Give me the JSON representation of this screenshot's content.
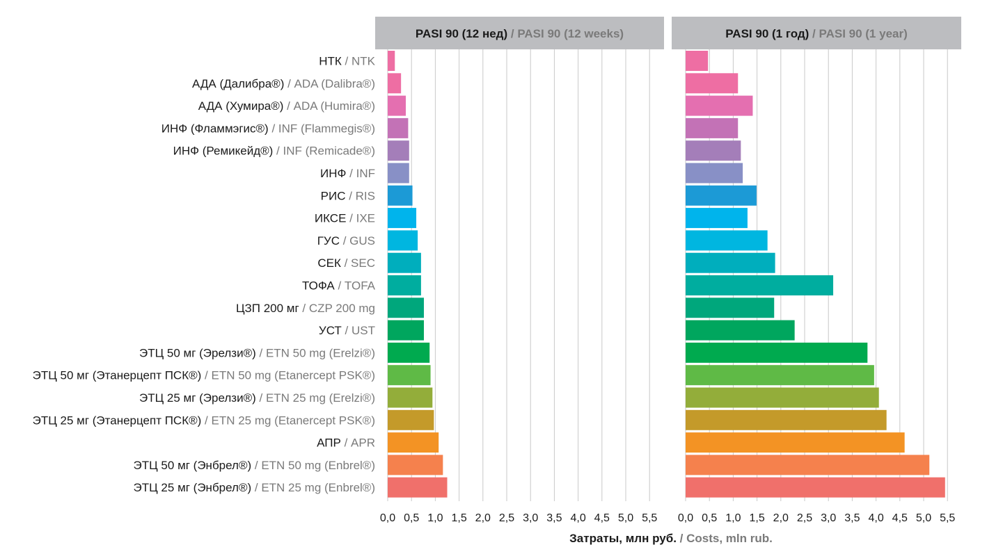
{
  "chart_data": {
    "type": "bar",
    "orientation": "horizontal",
    "categories": [
      {
        "ru": "НТК",
        "en": "NTK"
      },
      {
        "ru": "АДА (Далибра®)",
        "en": "ADA (Dalibra®)"
      },
      {
        "ru": "АДА (Хумира®)",
        "en": "ADA (Humira®)"
      },
      {
        "ru": "ИНФ (Фламмэгис®)",
        "en": "INF (Flammegis®)"
      },
      {
        "ru": "ИНФ (Ремикейд®)",
        "en": "INF (Remicade®)"
      },
      {
        "ru": "ИНФ",
        "en": "INF"
      },
      {
        "ru": "РИС",
        "en": "RIS"
      },
      {
        "ru": "ИКСЕ",
        "en": "IXE"
      },
      {
        "ru": "ГУС",
        "en": "GUS"
      },
      {
        "ru": "СЕК",
        "en": "SEC"
      },
      {
        "ru": "ТОФА",
        "en": "TOFA"
      },
      {
        "ru": "ЦЗП 200 мг",
        "en": "CZP 200 mg"
      },
      {
        "ru": "УСТ",
        "en": "UST"
      },
      {
        "ru": "ЭТЦ 50 мг (Эрелзи®)",
        "en": "ETN 50 mg (Erelzi®)"
      },
      {
        "ru": "ЭТЦ 50 мг (Этанерцепт ПСК®)",
        "en": "ETN 50 mg (Etanercept PSK®)"
      },
      {
        "ru": "ЭТЦ 25 мг (Эрелзи®)",
        "en": "ETN 25 mg (Erelzi®)"
      },
      {
        "ru": "ЭТЦ 25 мг (Этанерцепт ПСК®)",
        "en": "ETN 25 mg (Etanercept PSK®)"
      },
      {
        "ru": "АПР",
        "en": "APR"
      },
      {
        "ru": "ЭТЦ 50 мг (Энбрел®)",
        "en": "ETN 50 mg (Enbrel®)"
      },
      {
        "ru": "ЭТЦ 25 мг (Энбрел®)",
        "en": "ETN 25 mg (Enbrel®)"
      }
    ],
    "colors": [
      "#ee6ea3",
      "#ee6ea3",
      "#e46fb0",
      "#c372b6",
      "#a47eb9",
      "#8890c6",
      "#1c9ad6",
      "#00b4ec",
      "#00b6e0",
      "#00aebd",
      "#00ad9f",
      "#00a77c",
      "#00a65e",
      "#00aa4f",
      "#5fba46",
      "#93ad3a",
      "#c49a2a",
      "#f39324",
      "#f5814d",
      "#f0706b"
    ],
    "panels": [
      {
        "title_ru": "PASI 90 (12 нед)",
        "title_en": "PASI 90 (12 weeks)",
        "values": [
          0.15,
          0.28,
          0.38,
          0.43,
          0.45,
          0.45,
          0.52,
          0.6,
          0.63,
          0.7,
          0.7,
          0.76,
          0.76,
          0.88,
          0.9,
          0.94,
          0.97,
          1.07,
          1.16,
          1.25
        ],
        "xlim": [
          0,
          5.8
        ]
      },
      {
        "title_ru": "PASI 90 (1 год)",
        "title_en": "PASI 90 (1 year)",
        "values": [
          0.47,
          1.1,
          1.41,
          1.1,
          1.16,
          1.2,
          1.49,
          1.3,
          1.72,
          1.88,
          3.1,
          1.86,
          2.29,
          3.82,
          3.96,
          4.06,
          4.22,
          4.6,
          5.12,
          5.45
        ],
        "xlim": [
          0,
          5.8
        ]
      }
    ],
    "xticks": [
      "0,0",
      "0,5",
      "1,0",
      "1,5",
      "2,0",
      "2,5",
      "3,0",
      "3,5",
      "4,0",
      "4,5",
      "5,0",
      "5,5"
    ],
    "tick_values": [
      0,
      0.5,
      1.0,
      1.5,
      2.0,
      2.5,
      3.0,
      3.5,
      4.0,
      4.5,
      5.0,
      5.5
    ],
    "xlabel_ru": "Затраты, млн руб.",
    "xlabel_en": "Costs, mln rub.",
    "separator": " / ",
    "header_color": "#bcbdc0",
    "grid_color": "#c8c8c8",
    "ru_color": "#1a1a1a",
    "en_color": "#7a7a7a",
    "grid": true
  }
}
